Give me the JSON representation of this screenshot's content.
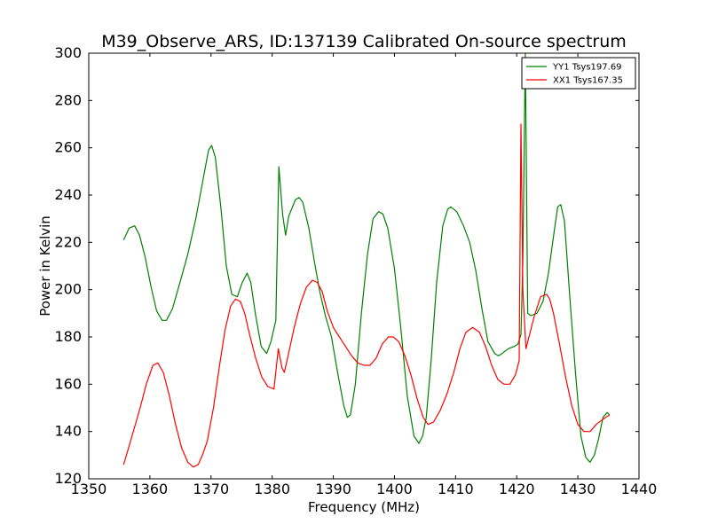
{
  "chart_data": {
    "type": "line",
    "title": "M39_Observe_ARS, ID:137139 Calibrated On-source spectrum",
    "xlabel": "Frequency (MHz)",
    "ylabel": "Power in Kelvin",
    "xlim": [
      1350,
      1440
    ],
    "ylim": [
      120,
      300
    ],
    "xticks": [
      1350,
      1360,
      1370,
      1380,
      1390,
      1400,
      1410,
      1420,
      1430,
      1440
    ],
    "yticks": [
      120,
      140,
      160,
      180,
      200,
      220,
      240,
      260,
      280,
      300
    ],
    "grid": false,
    "legend_position": "top-right",
    "series": [
      {
        "name": "YY1 Tsys197.69",
        "color": "#008000",
        "x": [
          1355.7,
          1356.6,
          1357.5,
          1358.3,
          1359.2,
          1360.2,
          1361.1,
          1362.0,
          1362.7,
          1363.7,
          1364.8,
          1366.2,
          1367.5,
          1368.8,
          1369.6,
          1370.1,
          1370.7,
          1371.6,
          1372.5,
          1373.4,
          1374.3,
          1375.1,
          1375.9,
          1376.5,
          1377.3,
          1378.2,
          1379.1,
          1379.8,
          1380.6,
          1381.1,
          1381.7,
          1382.2,
          1382.7,
          1383.8,
          1384.4,
          1385.0,
          1386.0,
          1386.9,
          1387.8,
          1388.7,
          1389.7,
          1390.7,
          1391.7,
          1392.3,
          1392.8,
          1393.6,
          1394.6,
          1395.6,
          1396.5,
          1397.4,
          1398.1,
          1398.9,
          1400.0,
          1401.0,
          1402.1,
          1403.2,
          1404.0,
          1404.6,
          1405.2,
          1406.0,
          1406.9,
          1407.9,
          1408.7,
          1409.2,
          1410.2,
          1411.3,
          1412.3,
          1413.3,
          1414.3,
          1415.3,
          1416.4,
          1417.0,
          1417.6,
          1418.6,
          1419.6,
          1420.2,
          1420.7,
          1421.0,
          1421.4,
          1421.8,
          1422.3,
          1423.3,
          1424.3,
          1425.2,
          1426.1,
          1426.7,
          1427.2,
          1427.8,
          1428.7,
          1429.6,
          1430.5,
          1431.3,
          1432.0,
          1432.7,
          1433.4,
          1434.1,
          1434.8,
          1435.2
        ],
        "values": [
          221,
          226,
          227,
          223,
          214,
          201,
          191,
          187,
          187,
          192,
          202,
          215,
          230,
          248,
          259,
          261,
          256,
          235,
          210,
          198,
          197,
          203,
          207,
          203,
          189,
          176,
          173,
          178,
          187,
          252,
          232,
          223,
          231,
          238,
          239,
          237,
          226,
          212,
          199,
          189,
          180,
          165,
          151,
          146,
          147,
          160,
          190,
          215,
          230,
          233,
          232,
          226,
          209,
          185,
          155,
          138,
          135,
          138,
          146,
          170,
          203,
          227,
          234,
          235,
          233,
          227,
          220,
          208,
          192,
          178,
          173,
          172,
          173,
          175,
          176,
          177,
          181,
          212,
          300,
          190,
          189,
          190,
          195,
          207,
          224,
          235,
          236,
          229,
          196,
          165,
          138,
          129,
          127,
          130,
          137,
          146,
          148,
          147
        ]
      },
      {
        "name": "XX1 Tsys167.35",
        "color": "#ff0000",
        "x": [
          1355.7,
          1356.5,
          1357.4,
          1358.4,
          1359.4,
          1360.5,
          1361.3,
          1362.2,
          1363.2,
          1364.2,
          1365.2,
          1366.2,
          1367.1,
          1367.9,
          1368.6,
          1369.4,
          1370.4,
          1371.4,
          1372.3,
          1373.2,
          1374.0,
          1374.8,
          1375.5,
          1376.3,
          1377.3,
          1378.3,
          1379.3,
          1380.3,
          1381.0,
          1381.6,
          1382.0,
          1382.6,
          1383.6,
          1384.6,
          1385.6,
          1386.6,
          1387.4,
          1388.2,
          1389.0,
          1390.0,
          1391.0,
          1392.0,
          1393.0,
          1394.0,
          1395.0,
          1396.0,
          1397.0,
          1398.0,
          1399.0,
          1399.8,
          1400.7,
          1401.7,
          1402.7,
          1403.7,
          1404.7,
          1405.5,
          1406.4,
          1407.5,
          1408.6,
          1409.7,
          1410.7,
          1411.7,
          1412.8,
          1413.9,
          1414.9,
          1415.9,
          1416.9,
          1417.9,
          1418.9,
          1419.8,
          1420.4,
          1420.7,
          1421.0,
          1421.5,
          1422.0,
          1422.9,
          1423.9,
          1424.9,
          1425.4,
          1426.0,
          1427.0,
          1428.0,
          1429.0,
          1430.0,
          1431.0,
          1432.0,
          1433.0,
          1434.0,
          1435.2
        ],
        "values": [
          126,
          133,
          141,
          150,
          160,
          168,
          169,
          165,
          155,
          143,
          133,
          127,
          125,
          126,
          130,
          136,
          150,
          168,
          183,
          193,
          196,
          195,
          190,
          181,
          171,
          163,
          159,
          158,
          175,
          167,
          165,
          172,
          184,
          194,
          201,
          204,
          203,
          199,
          191,
          184,
          180,
          176,
          172,
          169,
          168,
          168,
          171,
          177,
          180,
          180,
          178,
          172,
          164,
          154,
          146,
          143,
          144,
          149,
          156,
          165,
          175,
          182,
          184,
          182,
          176,
          168,
          162,
          160,
          160,
          164,
          170,
          270,
          200,
          175,
          180,
          189,
          197,
          198,
          196,
          190,
          177,
          163,
          151,
          143,
          140,
          140,
          143,
          145,
          147
        ]
      }
    ]
  }
}
